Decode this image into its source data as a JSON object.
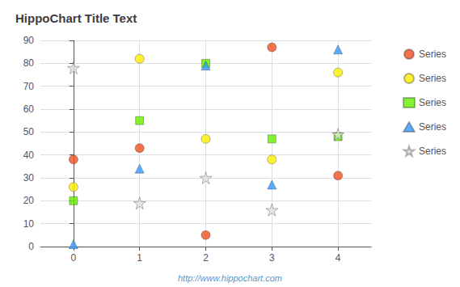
{
  "chart_data": {
    "type": "scatter",
    "title": "HippoChart Title Text",
    "annotations": [
      "http://www.hippochart.com"
    ],
    "xlim": [
      -0.5,
      4.5
    ],
    "xticks": [
      0,
      1,
      2,
      3,
      4
    ],
    "ylim": [
      0,
      90
    ],
    "yticks": [
      0,
      10,
      20,
      30,
      40,
      50,
      60,
      70,
      80,
      90
    ],
    "grid": true,
    "series": [
      {
        "name": "Series",
        "color": "#F05020",
        "marker": "circle",
        "x": [
          0,
          1,
          2,
          3,
          4
        ],
        "values": [
          38,
          43,
          5,
          87,
          31
        ]
      },
      {
        "name": "Series",
        "color": "#FFEE00",
        "marker": "circle",
        "x": [
          0,
          1,
          2,
          3,
          4
        ],
        "values": [
          26,
          82,
          47,
          38,
          76
        ]
      },
      {
        "name": "Series",
        "color": "#66EE00",
        "marker": "square",
        "x": [
          0,
          1,
          2,
          3,
          4
        ],
        "values": [
          20,
          55,
          80,
          47,
          48
        ]
      },
      {
        "name": "Series",
        "color": "#3399FF",
        "marker": "triangle",
        "x": [
          0,
          1,
          2,
          3,
          4
        ],
        "values": [
          1,
          34,
          79,
          27,
          86
        ]
      },
      {
        "name": "Series",
        "color": "#E0E0E0",
        "marker": "star",
        "x": [
          0,
          1,
          2,
          3,
          4
        ],
        "values": [
          78,
          19,
          30,
          16,
          49
        ]
      }
    ]
  }
}
